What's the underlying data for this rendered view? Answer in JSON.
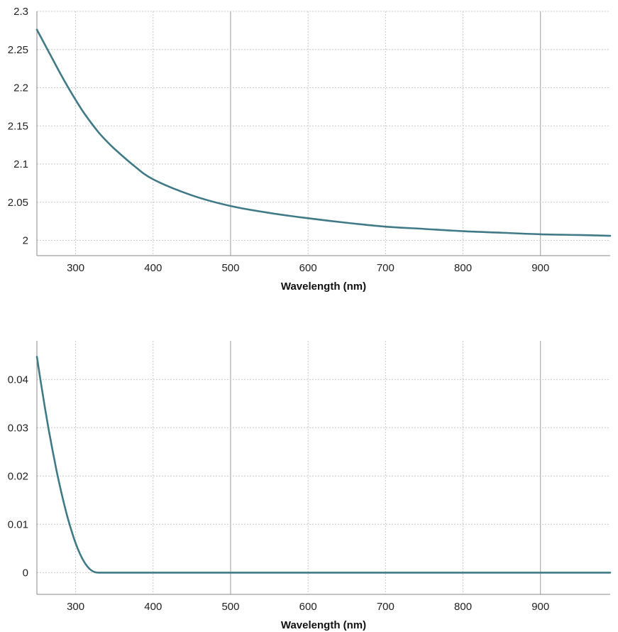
{
  "chart_data": [
    {
      "type": "line",
      "xlabel": "Wavelength (nm)",
      "ylabel": "",
      "xlim": [
        250,
        990
      ],
      "ylim": [
        1.98,
        2.3
      ],
      "xticks": [
        300,
        400,
        500,
        600,
        700,
        800,
        900
      ],
      "yticks": [
        2,
        2.05,
        2.1,
        2.15,
        2.2,
        2.25,
        2.3
      ],
      "ytick_labels": [
        "2",
        "2.05",
        "2.1",
        "2.15",
        "2.2",
        "2.25",
        "2.3"
      ],
      "grid": true,
      "color": "#3f7a86",
      "series": [
        {
          "x": [
            250,
            260,
            270,
            280,
            290,
            300,
            310,
            320,
            330,
            340,
            350,
            375,
            400,
            450,
            500,
            550,
            600,
            650,
            700,
            750,
            800,
            850,
            900,
            950,
            990
          ],
          "y": [
            2.276,
            2.257,
            2.238,
            2.219,
            2.201,
            2.184,
            2.168,
            2.154,
            2.141,
            2.13,
            2.12,
            2.098,
            2.08,
            2.059,
            2.045,
            2.036,
            2.029,
            2.023,
            2.018,
            2.015,
            2.012,
            2.01,
            2.008,
            2.007,
            2.006
          ]
        }
      ]
    },
    {
      "type": "line",
      "xlabel": "Wavelength (nm)",
      "ylabel": "",
      "xlim": [
        250,
        990
      ],
      "ylim": [
        -0.0045,
        0.048
      ],
      "xticks": [
        300,
        400,
        500,
        600,
        700,
        800,
        900
      ],
      "yticks": [
        0,
        0.01,
        0.02,
        0.03,
        0.04
      ],
      "ytick_labels": [
        "0",
        "0.01",
        "0.02",
        "0.03",
        "0.04"
      ],
      "grid": true,
      "color": "#3f7a86",
      "series": [
        {
          "x": [
            250,
            255,
            260,
            265,
            270,
            275,
            280,
            285,
            290,
            295,
            300,
            305,
            310,
            315,
            320,
            325,
            330,
            340,
            400,
            500,
            600,
            700,
            800,
            900,
            990
          ],
          "y": [
            0.0447,
            0.0395,
            0.0345,
            0.0298,
            0.0255,
            0.0214,
            0.0177,
            0.0143,
            0.0112,
            0.0085,
            0.0061,
            0.0041,
            0.0025,
            0.0013,
            0.0005,
            0.0001,
            0.0,
            0.0,
            0.0,
            0.0,
            0.0,
            0.0,
            0.0,
            0.0,
            0.0
          ]
        }
      ]
    }
  ]
}
